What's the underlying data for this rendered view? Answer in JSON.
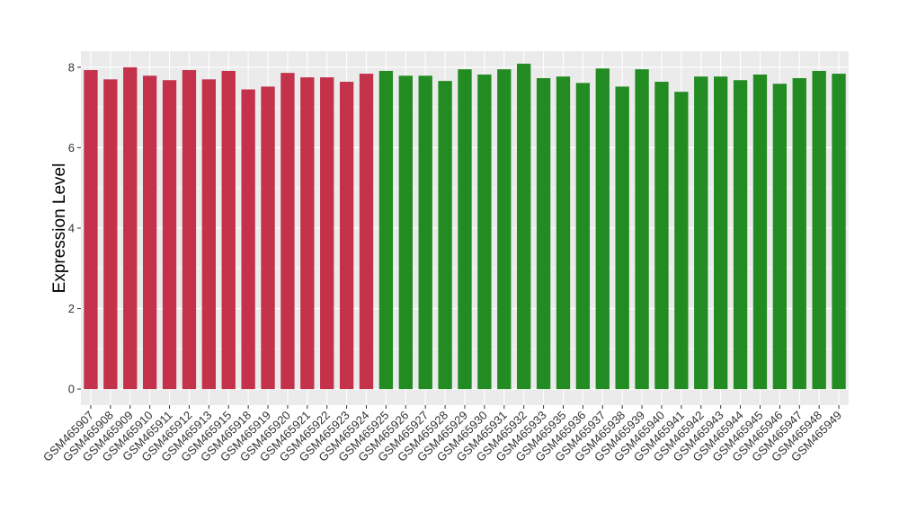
{
  "chart_data": {
    "type": "bar",
    "title": "",
    "xlabel": "",
    "ylabel": "Expression Level",
    "ylim": [
      -0.4,
      8.4
    ],
    "yticks": [
      0,
      2,
      4,
      6,
      8
    ],
    "grid": true,
    "legend": "none",
    "categories": [
      "GSM465907",
      "GSM465908",
      "GSM465909",
      "GSM465910",
      "GSM465911",
      "GSM465912",
      "GSM465913",
      "GSM465915",
      "GSM465918",
      "GSM465919",
      "GSM465920",
      "GSM465921",
      "GSM465922",
      "GSM465923",
      "GSM465924",
      "GSM465925",
      "GSM465926",
      "GSM465927",
      "GSM465928",
      "GSM465929",
      "GSM465930",
      "GSM465931",
      "GSM465932",
      "GSM465933",
      "GSM465935",
      "GSM465936",
      "GSM465937",
      "GSM465938",
      "GSM465939",
      "GSM465940",
      "GSM465941",
      "GSM465942",
      "GSM465943",
      "GSM465944",
      "GSM465945",
      "GSM465946",
      "GSM465947",
      "GSM465948",
      "GSM465949"
    ],
    "values": [
      7.93,
      7.7,
      8.0,
      7.79,
      7.68,
      7.93,
      7.7,
      7.91,
      7.45,
      7.52,
      7.86,
      7.75,
      7.75,
      7.64,
      7.84,
      7.91,
      7.79,
      7.79,
      7.66,
      7.95,
      7.82,
      7.95,
      8.09,
      7.73,
      7.77,
      7.61,
      7.97,
      7.52,
      7.95,
      7.64,
      7.39,
      7.77,
      7.77,
      7.68,
      7.82,
      7.59,
      7.73,
      7.91,
      7.84
    ],
    "groups": [
      "red",
      "red",
      "red",
      "red",
      "red",
      "red",
      "red",
      "red",
      "red",
      "red",
      "red",
      "red",
      "red",
      "red",
      "red",
      "green",
      "green",
      "green",
      "green",
      "green",
      "green",
      "green",
      "green",
      "green",
      "green",
      "green",
      "green",
      "green",
      "green",
      "green",
      "green",
      "green",
      "green",
      "green",
      "green",
      "green",
      "green",
      "green",
      "green"
    ],
    "colors": {
      "red": "#C3314A",
      "green": "#228B22",
      "panel": "#EBEBEB",
      "grid": "#FFFFFF"
    }
  }
}
